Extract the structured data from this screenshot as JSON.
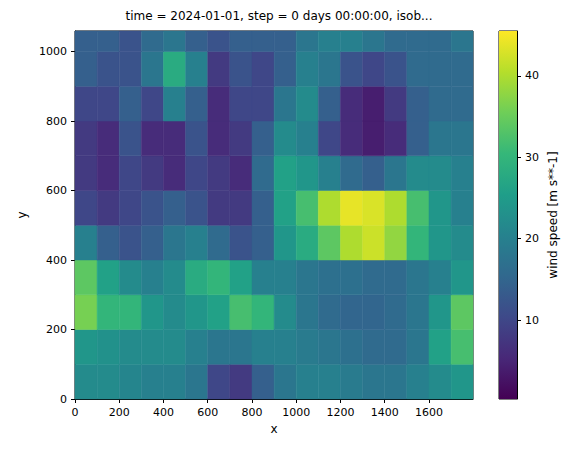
{
  "chart_data": {
    "type": "heatmap",
    "title": "time = 2024-01-01, step = 0 days 00:00:00, isob...",
    "x_label": "x",
    "y_label": "y",
    "x": [
      50,
      150,
      250,
      350,
      450,
      550,
      650,
      750,
      850,
      950,
      1050,
      1150,
      1250,
      1350,
      1450,
      1550,
      1650,
      1750
    ],
    "y": [
      50,
      150,
      250,
      350,
      450,
      550,
      650,
      750,
      850,
      950,
      1050
    ],
    "values": [
      [
        22,
        22,
        21,
        20,
        20,
        18,
        10,
        8,
        14,
        18,
        20,
        20,
        19,
        18,
        18,
        20,
        22,
        24
      ],
      [
        24,
        23,
        22,
        22,
        22,
        20,
        18,
        18,
        20,
        20,
        19,
        18,
        17,
        16,
        16,
        18,
        26,
        32
      ],
      [
        36,
        30,
        30,
        24,
        22,
        24,
        26,
        32,
        30,
        22,
        18,
        16,
        15,
        15,
        16,
        18,
        24,
        34
      ],
      [
        34,
        26,
        22,
        20,
        22,
        28,
        30,
        26,
        20,
        20,
        18,
        17,
        17,
        16,
        16,
        18,
        20,
        24
      ],
      [
        20,
        14,
        12,
        14,
        18,
        20,
        16,
        12,
        14,
        24,
        28,
        34,
        40,
        42,
        38,
        30,
        24,
        22
      ],
      [
        10,
        8,
        10,
        12,
        14,
        12,
        8,
        8,
        14,
        26,
        32,
        40,
        44,
        43,
        40,
        32,
        24,
        20
      ],
      [
        8,
        6,
        10,
        8,
        6,
        10,
        8,
        6,
        16,
        26,
        24,
        20,
        16,
        14,
        18,
        22,
        22,
        20
      ],
      [
        8,
        6,
        12,
        6,
        6,
        12,
        6,
        8,
        14,
        22,
        20,
        10,
        6,
        4,
        6,
        14,
        18,
        18
      ],
      [
        10,
        10,
        14,
        10,
        20,
        14,
        6,
        10,
        10,
        18,
        22,
        14,
        6,
        4,
        8,
        14,
        16,
        16
      ],
      [
        14,
        12,
        12,
        18,
        28,
        20,
        8,
        12,
        10,
        14,
        20,
        18,
        12,
        10,
        12,
        16,
        16,
        16
      ],
      [
        14,
        14,
        12,
        16,
        18,
        14,
        12,
        14,
        14,
        14,
        18,
        20,
        20,
        18,
        16,
        16,
        16,
        18
      ]
    ],
    "xlim": [
      0,
      1799
    ],
    "ylim": [
      0,
      1059
    ],
    "xticks": [
      0,
      200,
      400,
      600,
      800,
      1000,
      1200,
      1400,
      1600
    ],
    "yticks": [
      0,
      200,
      400,
      600,
      800,
      1000
    ],
    "colorbar": {
      "label": "wind speed [m s**-1]",
      "range": [
        0.3,
        45.5
      ],
      "ticks": [
        10,
        20,
        30,
        40
      ]
    }
  }
}
